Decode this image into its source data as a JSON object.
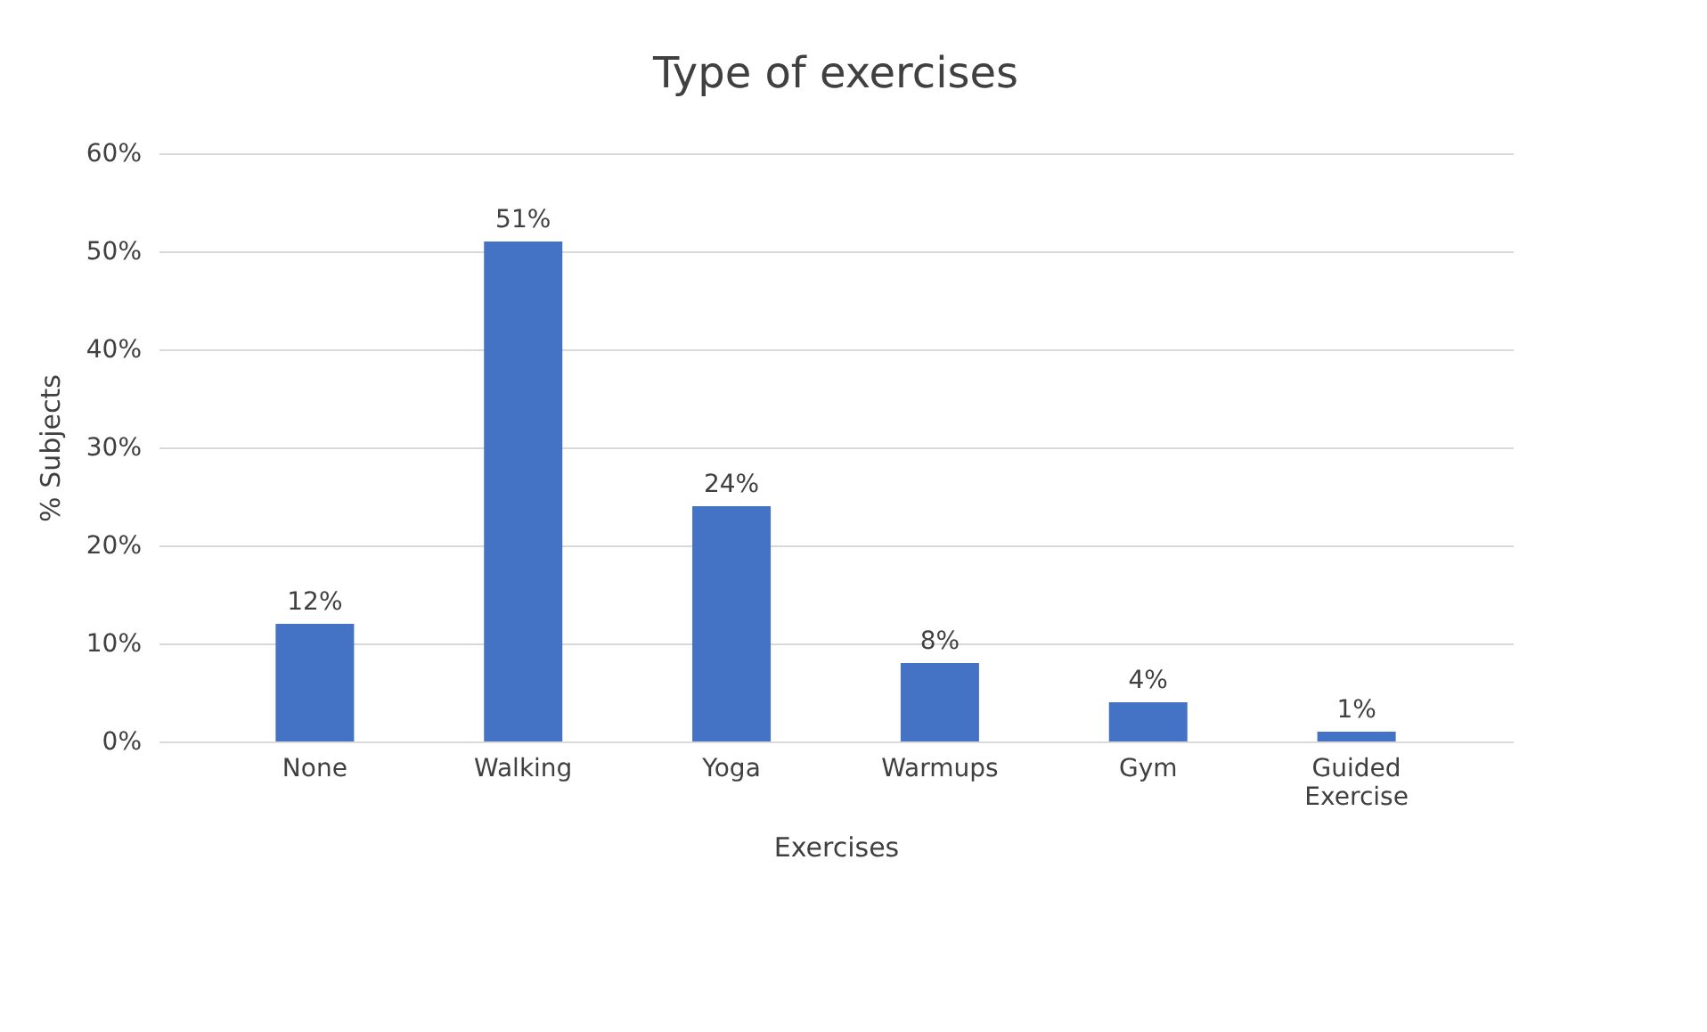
{
  "chart_data": {
    "type": "bar",
    "title": "Type of exercises",
    "xlabel": "Exercises",
    "ylabel": "% Subjects",
    "categories": [
      "None",
      "Walking",
      "Yoga",
      "Warmups",
      "Gym",
      "Guided Exercise"
    ],
    "values": [
      12,
      51,
      24,
      8,
      4,
      1
    ],
    "value_labels": [
      "12%",
      "51%",
      "24%",
      "8%",
      "4%",
      "1%"
    ],
    "color": "#4472c4",
    "ylim": [
      0,
      60
    ],
    "yticks": [
      {
        "value": 0,
        "label": "0%"
      },
      {
        "value": 10,
        "label": "10%"
      },
      {
        "value": 20,
        "label": "20%"
      },
      {
        "value": 30,
        "label": "30%"
      },
      {
        "value": 40,
        "label": "40%"
      },
      {
        "value": 50,
        "label": "50%"
      },
      {
        "value": 60,
        "label": "60%"
      }
    ],
    "grid": "y"
  }
}
